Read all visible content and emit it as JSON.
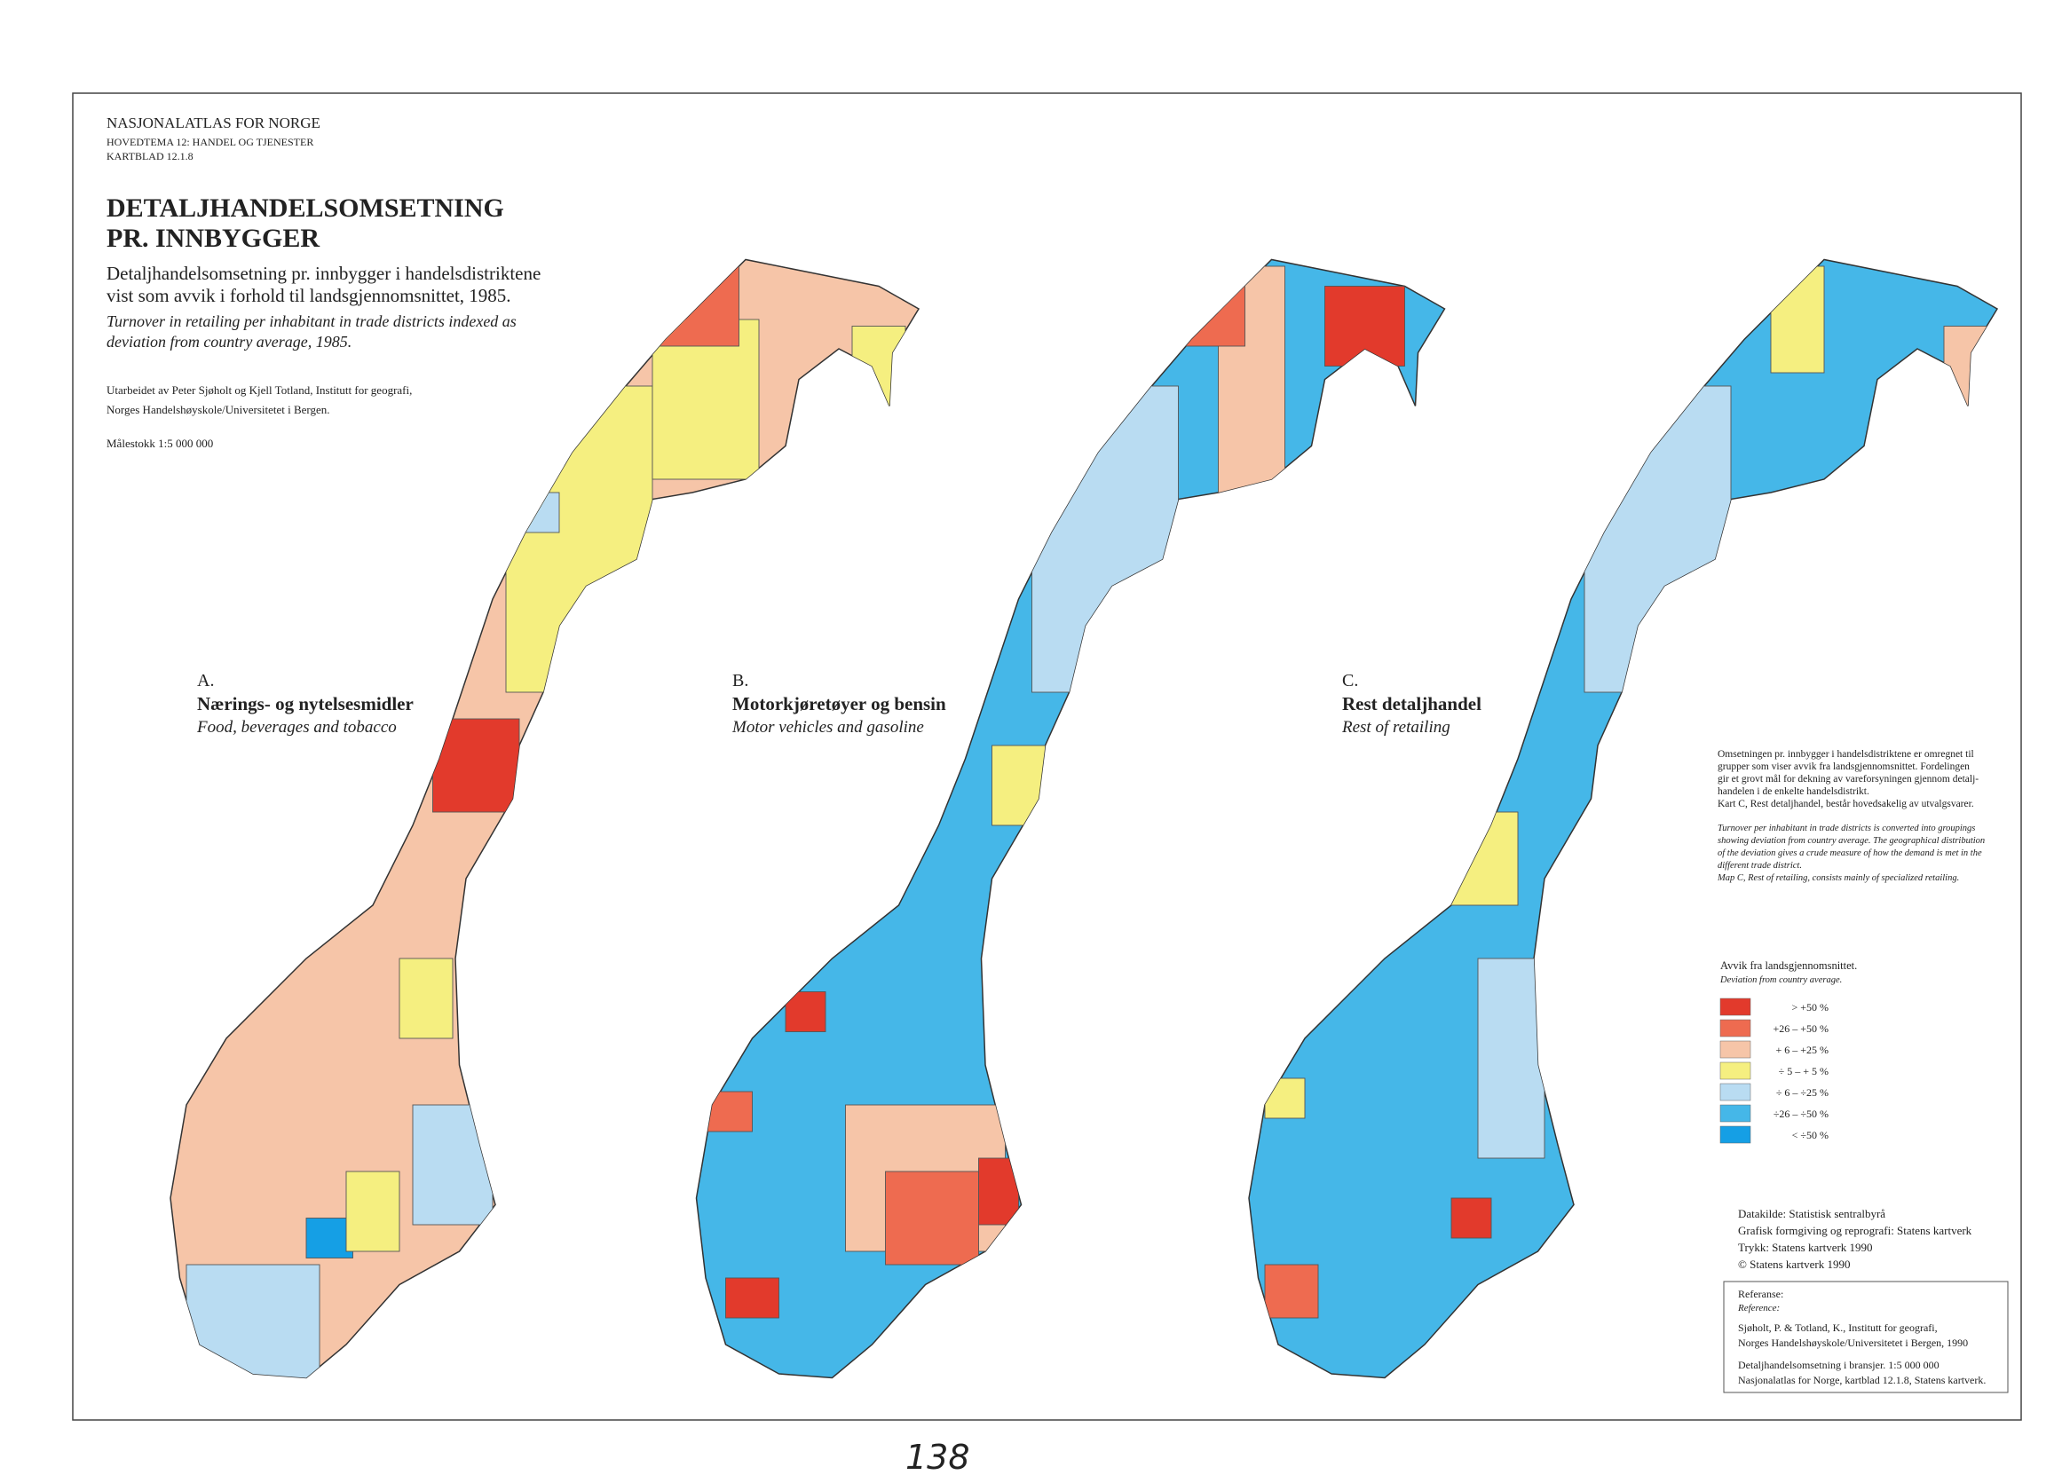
{
  "header": {
    "atlas": "NASJONALATLAS FOR NORGE",
    "theme": "HOVEDTEMA 12: HANDEL OG TJENESTER",
    "sheet": "KARTBLAD 12.1.8"
  },
  "title": [
    "DETALJHANDELSOMSETNING",
    "PR. INNBYGGER"
  ],
  "subtitle_no": [
    "Detaljhandelsomsetning pr. innbygger i handelsdistriktene",
    "vist som avvik i forhold til landsgjennomsnittet, 1985."
  ],
  "subtitle_en": [
    "Turnover in retailing per inhabitant in trade districts indexed as",
    "deviation from country average, 1985."
  ],
  "credits": [
    "Utarbeidet av Peter Sjøholt og Kjell Totland, Institutt for geografi,",
    "Norges Handelshøyskole/Universitetet i Bergen."
  ],
  "scale": "Målestokk 1:5 000 000",
  "maps": [
    {
      "letter": "A.",
      "title_no": "Nærings- og nytelsesmidler",
      "title_en": "Food, beverages and tobacco"
    },
    {
      "letter": "B.",
      "title_no": "Motorkjøretøyer og bensin",
      "title_en": "Motor vehicles and gasoline"
    },
    {
      "letter": "C.",
      "title_no": "Rest detaljhandel",
      "title_en": "Rest of retailing"
    }
  ],
  "note_no": [
    "Omsetningen pr. innbygger i handelsdistriktene er omregnet til",
    "grupper som viser avvik fra landsgjennomsnittet. Fordelingen",
    "gir et grovt mål for dekning av vareforsyningen gjennom detalj-",
    "handelen i de enkelte handelsdistrikt.",
    "Kart C, Rest detaljhandel, består hovedsakelig av utvalgsvarer."
  ],
  "note_en": [
    "Turnover per inhabitant in trade districts is converted into groupings",
    "showing deviation from country average. The geographical distribution",
    "of the deviation gives a crude measure of how the demand is met in the",
    "different trade district.",
    "Map C, Rest of retailing, consists mainly of specialized retailing."
  ],
  "legend": {
    "title_no": "Avvik fra landsgjennomsnittet.",
    "title_en": "Deviation from country average.",
    "items": [
      {
        "label": "> +50 %",
        "color": "#e23a2c"
      },
      {
        "label": "+26 – +50 %",
        "color": "#ee6b50"
      },
      {
        "label": "+ 6 – +25 %",
        "color": "#f6c5a8"
      },
      {
        "label": "÷ 5 – + 5 %",
        "color": "#f5ef80"
      },
      {
        "label": "÷ 6 – ÷25 %",
        "color": "#b9dcf2"
      },
      {
        "label": "÷26 – ÷50 %",
        "color": "#45b7e8"
      },
      {
        "label": "< ÷50 %",
        "color": "#159fe5"
      }
    ]
  },
  "sources": [
    "Datakilde: Statistisk sentralbyrå",
    "Grafisk formgiving og reprografi: Statens kartverk",
    "Trykk: Statens kartverk 1990",
    "© Statens kartverk 1990"
  ],
  "reference": {
    "heading_no": "Referanse:",
    "heading_en": "Reference:",
    "lines": [
      "Sjøholt, P. & Totland, K., Institutt for geografi,",
      "Norges Handelshøyskole/Universitetet i Bergen, 1990",
      "Detaljhandelsomsetning i bransjer. 1:5 000 000",
      "Nasjonalatlas for Norge, kartblad 12.1.8, Statens kartverk."
    ]
  },
  "page_number": "138"
}
